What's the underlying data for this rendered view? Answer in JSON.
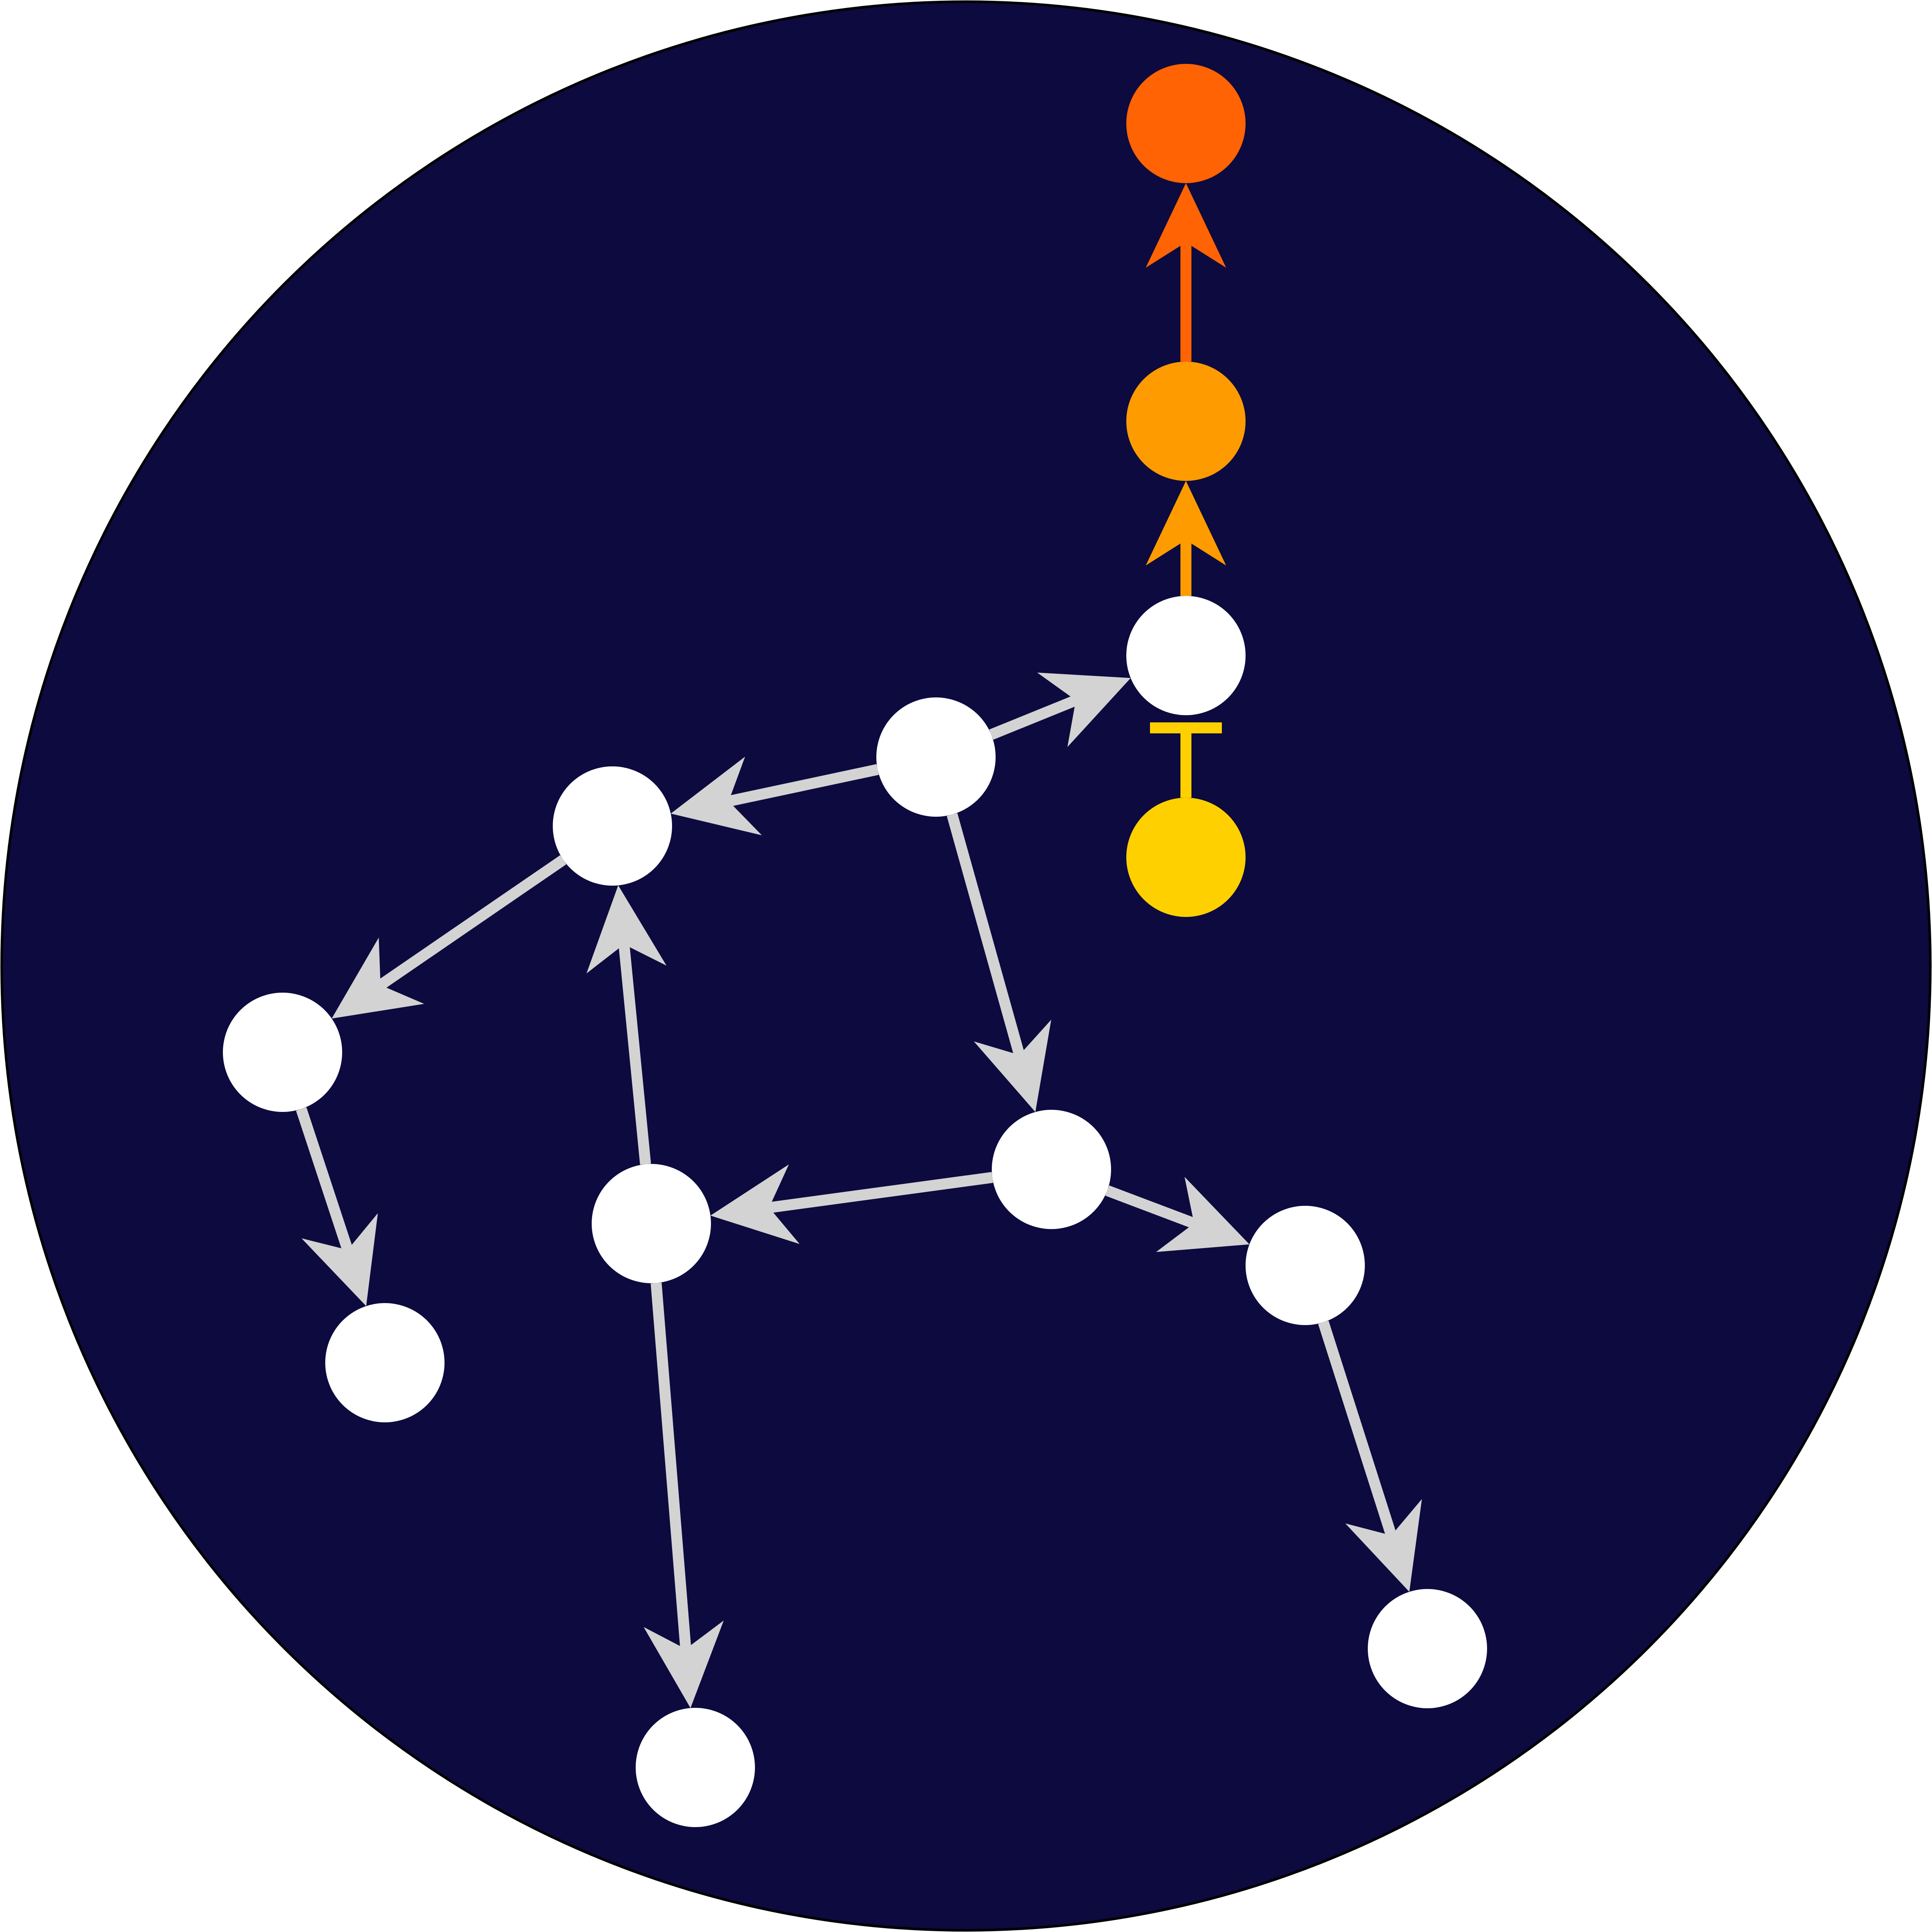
{
  "colors": {
    "background_circle": "#0c0a3e",
    "outline": "#000000",
    "node_default": "#ffffff",
    "edge_default": "#d3d3d3",
    "node_yellow": "#ffd000",
    "node_orange": "#fd9b00",
    "node_red_orange": "#ff6304",
    "edge_orange": "#fd9b00",
    "edge_red_orange": "#ff6304",
    "edge_yellow": "#ffd000"
  },
  "nodes": [
    {
      "id": "top-red",
      "color_key": "node_red_orange"
    },
    {
      "id": "mid-orange",
      "color_key": "node_orange"
    },
    {
      "id": "upper-right-white",
      "color_key": "node_default"
    },
    {
      "id": "yellow",
      "color_key": "node_yellow"
    },
    {
      "id": "hub",
      "color_key": "node_default"
    },
    {
      "id": "left-upper",
      "color_key": "node_default"
    },
    {
      "id": "far-left",
      "color_key": "node_default"
    },
    {
      "id": "bottom-left",
      "color_key": "node_default"
    },
    {
      "id": "center-lower",
      "color_key": "node_default"
    },
    {
      "id": "right-middle",
      "color_key": "node_default"
    },
    {
      "id": "right-lower",
      "color_key": "node_default"
    },
    {
      "id": "bottom-center",
      "color_key": "node_default"
    },
    {
      "id": "bottom-right",
      "color_key": "node_default"
    }
  ],
  "edges": [
    {
      "from": "mid-orange",
      "to": "top-red",
      "head": "arrow",
      "color_key": "edge_red_orange"
    },
    {
      "from": "upper-right-white",
      "to": "mid-orange",
      "head": "arrow",
      "color_key": "edge_orange"
    },
    {
      "from": "yellow",
      "to": "upper-right-white",
      "head": "tee",
      "color_key": "edge_yellow"
    },
    {
      "from": "hub",
      "to": "upper-right-white",
      "head": "arrow",
      "color_key": "edge_default"
    },
    {
      "from": "hub",
      "to": "left-upper",
      "head": "arrow",
      "color_key": "edge_default"
    },
    {
      "from": "hub",
      "to": "center-lower",
      "head": "arrow",
      "color_key": "edge_default"
    },
    {
      "from": "left-upper",
      "to": "far-left",
      "head": "arrow",
      "color_key": "edge_default"
    },
    {
      "from": "far-left",
      "to": "bottom-left",
      "head": "arrow",
      "color_key": "edge_default"
    },
    {
      "from": "right-middle",
      "to": "left-upper",
      "head": "arrow",
      "color_key": "edge_default"
    },
    {
      "from": "right-middle",
      "to": "bottom-center",
      "head": "arrow",
      "color_key": "edge_default"
    },
    {
      "from": "center-lower",
      "to": "right-middle",
      "head": "arrow",
      "color_key": "edge_default"
    },
    {
      "from": "center-lower",
      "to": "right-lower",
      "head": "arrow",
      "color_key": "edge_default"
    },
    {
      "from": "right-lower",
      "to": "bottom-right",
      "head": "arrow",
      "color_key": "edge_default"
    }
  ]
}
